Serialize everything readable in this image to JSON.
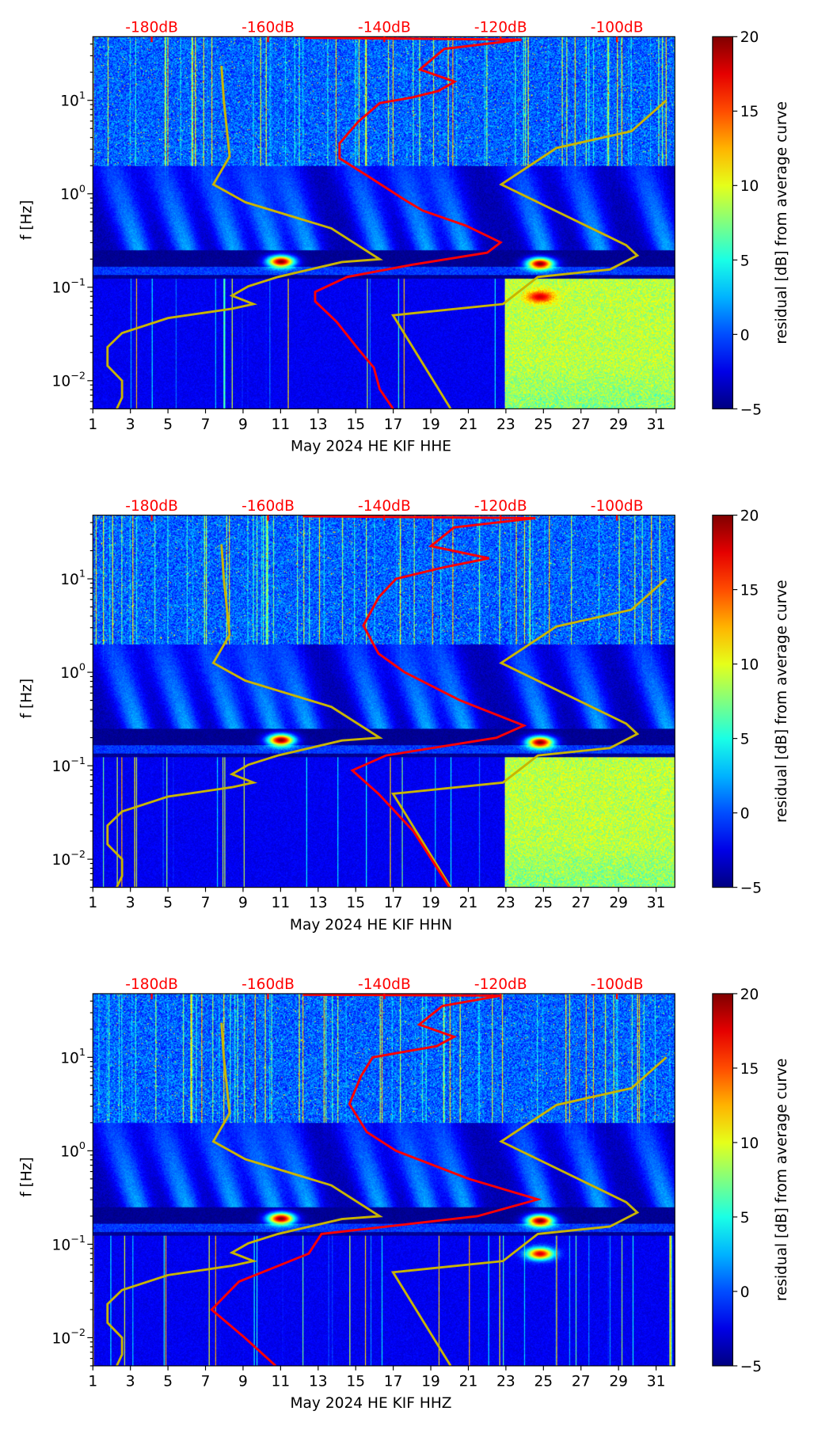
{
  "chart_data": [
    {
      "type": "heatmap",
      "xlabel": "May 2024 HE KIF  HHE",
      "ylabel": "f [Hz]",
      "colorbar_label": "residual [dB] from average curve",
      "red_curve": [
        [
          -153.7,
          1.67
        ],
        [
          -116.4,
          1.65
        ],
        [
          -129.7,
          1.55
        ],
        [
          -133.9,
          1.33
        ],
        [
          -127.9,
          1.2
        ],
        [
          -130.7,
          1.1
        ],
        [
          -135.3,
          1.03
        ],
        [
          -140.8,
          0.97
        ],
        [
          -144.5,
          0.77
        ],
        [
          -147.7,
          0.54
        ],
        [
          -147.7,
          0.38
        ],
        [
          -142.6,
          0.18
        ],
        [
          -136.1,
          -0.08
        ],
        [
          -133.4,
          -0.18
        ],
        [
          -126.0,
          -0.34
        ],
        [
          -120.0,
          -0.52
        ],
        [
          -122.3,
          -0.63
        ],
        [
          -135.3,
          -0.76
        ],
        [
          -146.4,
          -0.89
        ],
        [
          -151.9,
          -1.05
        ],
        [
          -151.9,
          -1.15
        ],
        [
          -148.2,
          -1.37
        ],
        [
          -144.5,
          -1.66
        ],
        [
          -141.8,
          -1.86
        ],
        [
          -140.8,
          -2.09
        ],
        [
          -138.5,
          -2.3
        ]
      ],
      "high_residual_block": {
        "from_day": 22.9,
        "below_hz": 0.13,
        "residual_db": 10
      },
      "hotspots": [
        {
          "day": 11,
          "hz": 0.19,
          "residual_db": 20
        },
        {
          "day": 24.8,
          "hz": 0.18,
          "residual_db": 20
        },
        {
          "day": 24.8,
          "hz": 0.08,
          "residual_db": 18
        }
      ]
    },
    {
      "type": "heatmap",
      "xlabel": "May 2024 HE KIF  HHN",
      "ylabel": "f [Hz]",
      "colorbar_label": "residual [dB] from average curve",
      "red_curve": [
        [
          -154,
          1.67
        ],
        [
          -114,
          1.65
        ],
        [
          -128,
          1.55
        ],
        [
          -132,
          1.35
        ],
        [
          -122,
          1.22
        ],
        [
          -130,
          1.12
        ],
        [
          -138,
          1.0
        ],
        [
          -141,
          0.8
        ],
        [
          -143.6,
          0.5
        ],
        [
          -141,
          0.2
        ],
        [
          -136.5,
          0.0
        ],
        [
          -127,
          -0.3
        ],
        [
          -116,
          -0.57
        ],
        [
          -120.7,
          -0.7
        ],
        [
          -139.7,
          -0.89
        ],
        [
          -145.5,
          -1.05
        ],
        [
          -141,
          -1.3
        ],
        [
          -135,
          -1.7
        ],
        [
          -128.8,
          -2.3
        ]
      ],
      "high_residual_block": {
        "from_day": 22.9,
        "below_hz": 0.13,
        "residual_db": 10
      },
      "hotspots": [
        {
          "day": 11,
          "hz": 0.19,
          "residual_db": 20
        },
        {
          "day": 24.8,
          "hz": 0.18,
          "residual_db": 20
        }
      ]
    },
    {
      "type": "heatmap",
      "xlabel": "May 2024 HE KIF  HHZ",
      "ylabel": "f [Hz]",
      "colorbar_label": "residual [dB] from average curve",
      "red_curve": [
        [
          -154,
          1.67
        ],
        [
          -120,
          1.66
        ],
        [
          -130,
          1.55
        ],
        [
          -134,
          1.35
        ],
        [
          -128,
          1.22
        ],
        [
          -131,
          1.12
        ],
        [
          -142,
          1.0
        ],
        [
          -144,
          0.8
        ],
        [
          -146,
          0.5
        ],
        [
          -143,
          0.2
        ],
        [
          -138,
          0.0
        ],
        [
          -125.5,
          -0.3
        ],
        [
          -113.6,
          -0.52
        ],
        [
          -124,
          -0.7
        ],
        [
          -150.8,
          -0.89
        ],
        [
          -153,
          -1.1
        ],
        [
          -165,
          -1.4
        ],
        [
          -169.7,
          -1.7
        ],
        [
          -164,
          -2.0
        ],
        [
          -158.7,
          -2.3
        ]
      ],
      "high_residual_block": null,
      "hotspots": [
        {
          "day": 11,
          "hz": 0.19,
          "residual_db": 20
        },
        {
          "day": 24.8,
          "hz": 0.18,
          "residual_db": 20
        },
        {
          "day": 24.8,
          "hz": 0.08,
          "residual_db": 18
        }
      ]
    }
  ],
  "shared": {
    "x_range_days": [
      1,
      32
    ],
    "x_ticks": [
      "1",
      "3",
      "5",
      "7",
      "9",
      "11",
      "13",
      "15",
      "17",
      "19",
      "21",
      "23",
      "25",
      "27",
      "29",
      "31"
    ],
    "y_range_hz": [
      0.005,
      48
    ],
    "y_scale": "log",
    "y_ticks": [
      {
        "base": "10",
        "exp": "1",
        "log": 1
      },
      {
        "base": "10",
        "exp": "0",
        "log": 0
      },
      {
        "base": "10",
        "exp": "−1",
        "log": -1
      },
      {
        "base": "10",
        "exp": "−2",
        "log": -2
      }
    ],
    "top_axis_ticks": [
      "-180dB",
      "-160dB",
      "-140dB",
      "-120dB",
      "-100dB"
    ],
    "top_axis_values_db": [
      -180,
      -160,
      -140,
      -120,
      -100
    ],
    "colorbar_range": [
      -5,
      20
    ],
    "colorbar_ticks": [
      "20",
      "15",
      "10",
      "5",
      "0",
      "−5"
    ],
    "colormap": "jet",
    "red_curve_color": "#ff0000",
    "model_curve_color": "#c8b400",
    "low_noise_model": [
      [
        -186.0,
        -2.3
      ],
      [
        -185.1,
        -2.18
      ],
      [
        -185.1,
        -2.0
      ],
      [
        -187.6,
        -1.84
      ],
      [
        -187.6,
        -1.64
      ],
      [
        -185.1,
        -1.49
      ],
      [
        -177.2,
        -1.33
      ],
      [
        -166.2,
        -1.23
      ],
      [
        -162.5,
        -1.18
      ],
      [
        -166.2,
        -1.09
      ],
      [
        -163.4,
        -0.99
      ],
      [
        -158.3,
        -0.89
      ],
      [
        -147.3,
        -0.73
      ],
      [
        -140.8,
        -0.7
      ],
      [
        -149.1,
        -0.37
      ],
      [
        -163.9,
        -0.09
      ],
      [
        -169.4,
        0.1
      ],
      [
        -166.6,
        0.4
      ],
      [
        -167.6,
        1.0
      ],
      [
        -168.0,
        1.37
      ]
    ],
    "high_noise_model": [
      [
        -128.6,
        -2.3
      ],
      [
        -138.5,
        -1.3
      ],
      [
        -119.6,
        -1.18
      ],
      [
        -113.6,
        -0.89
      ],
      [
        -101.2,
        -0.81
      ],
      [
        -96.5,
        -0.66
      ],
      [
        -98.4,
        -0.55
      ],
      [
        -119.9,
        0.1
      ],
      [
        -110.4,
        0.49
      ],
      [
        -97.5,
        0.67
      ],
      [
        -91.5,
        1.0
      ]
    ]
  }
}
